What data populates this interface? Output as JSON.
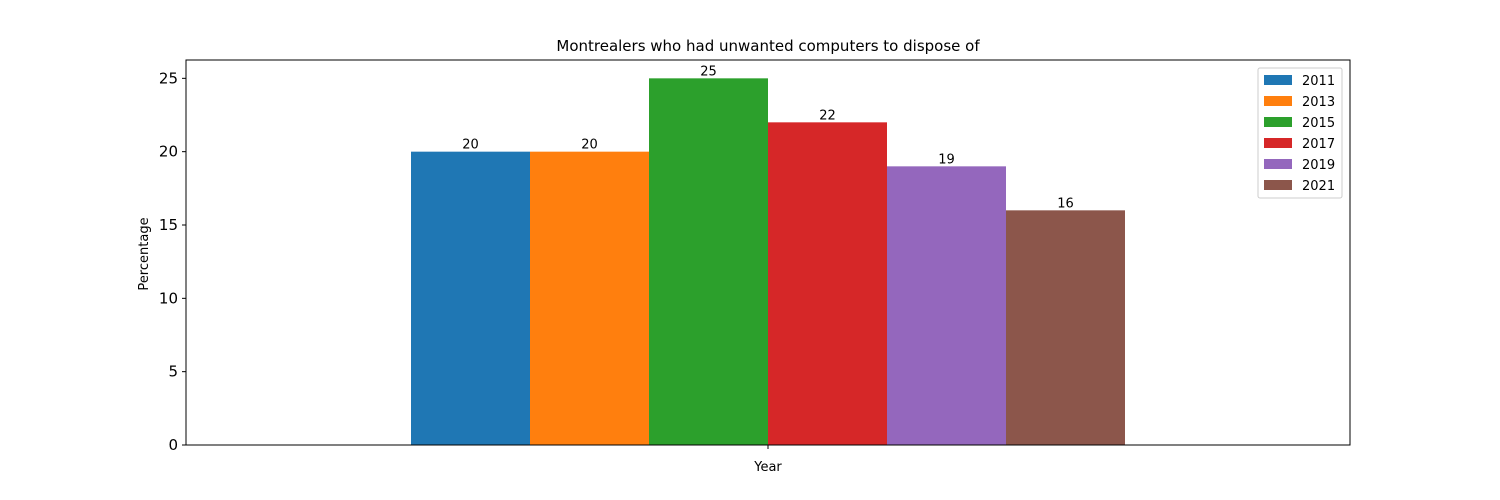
{
  "chart_data": {
    "type": "bar",
    "title": "Montrealers who had unwanted computers to dispose of",
    "xlabel": "Year",
    "ylabel": "Percentage",
    "ylim": [
      0,
      26.25
    ],
    "yticks": [
      0,
      5,
      10,
      15,
      20,
      25
    ],
    "grid": false,
    "legend_position": "top-right",
    "series": [
      {
        "name": "2011",
        "values": [
          20
        ],
        "color": "#1f77b4"
      },
      {
        "name": "2013",
        "values": [
          20
        ],
        "color": "#ff7f0e"
      },
      {
        "name": "2015",
        "values": [
          25
        ],
        "color": "#2ca02c"
      },
      {
        "name": "2017",
        "values": [
          22
        ],
        "color": "#d62728"
      },
      {
        "name": "2019",
        "values": [
          19
        ],
        "color": "#9467bd"
      },
      {
        "name": "2021",
        "values": [
          16
        ],
        "color": "#8c564b"
      }
    ]
  }
}
